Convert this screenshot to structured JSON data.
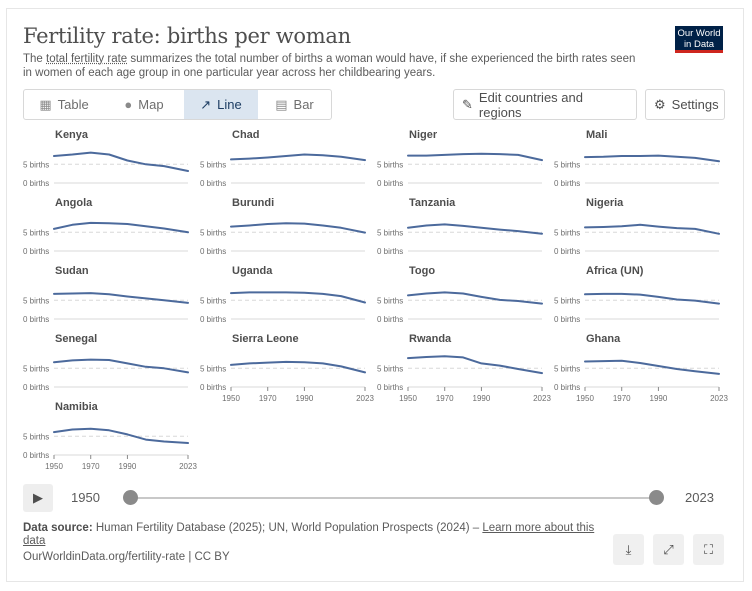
{
  "header": {
    "title": "Fertility rate: births per woman",
    "subtitle_pre": "The ",
    "subtitle_link": "total fertility rate",
    "subtitle_post": " summarizes the total number of births a woman would have, if she experienced the birth rates seen in women of each age group in one particular year across her childbearing years.",
    "logo_line1": "Our World",
    "logo_line2": "in Data"
  },
  "tabs": [
    {
      "label": "Table",
      "icon": "table-icon"
    },
    {
      "label": "Map",
      "icon": "globe-icon"
    },
    {
      "label": "Line",
      "icon": "line-chart-icon",
      "active": true
    },
    {
      "label": "Bar",
      "icon": "bar-chart-icon"
    }
  ],
  "controls": {
    "edit_label": "Edit countries and regions",
    "settings_label": "Settings"
  },
  "timeline": {
    "start": "1950",
    "end": "2023",
    "play_icon": "play-icon"
  },
  "footer": {
    "source_label": "Data source:",
    "source_text": " Human Fertility Database (2025); UN, World Population Prospects (2024) – ",
    "source_link": "Learn more about this data",
    "url": "OurWorldinData.org/fertility-rate | CC BY"
  },
  "colors": {
    "series": "#4c6a9c",
    "accent": "#dbe5f0",
    "logo_bg": "#002147",
    "logo_line": "#ce261e"
  },
  "chart_data": {
    "type": "line",
    "layout": "small-multiples",
    "x_range": [
      1950,
      2023
    ],
    "y_range": [
      0,
      8
    ],
    "y_ticks": [
      {
        "value": 0,
        "label": "0 births"
      },
      {
        "value": 5,
        "label": "5 births"
      }
    ],
    "x_ticks": [
      {
        "value": 1950,
        "label": "1950"
      },
      {
        "value": 1970,
        "label": "1970"
      },
      {
        "value": 1990,
        "label": "1990"
      },
      {
        "value": 2023,
        "label": "2023"
      }
    ],
    "x_years": [
      1950,
      1960,
      1970,
      1980,
      1990,
      2000,
      2010,
      2023
    ],
    "panels": [
      {
        "name": "Kenya",
        "values": [
          7.2,
          7.6,
          8.1,
          7.6,
          6.0,
          5.0,
          4.5,
          3.2
        ]
      },
      {
        "name": "Chad",
        "values": [
          6.3,
          6.5,
          6.8,
          7.2,
          7.6,
          7.4,
          7.0,
          6.1
        ]
      },
      {
        "name": "Niger",
        "values": [
          7.3,
          7.3,
          7.5,
          7.7,
          7.8,
          7.7,
          7.5,
          6.1
        ]
      },
      {
        "name": "Mali",
        "values": [
          6.9,
          7.0,
          7.2,
          7.2,
          7.3,
          7.0,
          6.7,
          5.8
        ]
      },
      {
        "name": "Angola",
        "values": [
          5.9,
          7.0,
          7.5,
          7.4,
          7.2,
          6.6,
          6.0,
          5.0
        ]
      },
      {
        "name": "Burundi",
        "values": [
          6.5,
          6.8,
          7.2,
          7.4,
          7.3,
          6.8,
          6.2,
          4.9
        ]
      },
      {
        "name": "Tanzania",
        "values": [
          6.2,
          6.8,
          7.1,
          6.7,
          6.2,
          5.7,
          5.3,
          4.6
        ]
      },
      {
        "name": "Nigeria",
        "values": [
          6.3,
          6.4,
          6.6,
          7.0,
          6.5,
          6.1,
          5.9,
          4.6
        ]
      },
      {
        "name": "Sudan",
        "values": [
          6.7,
          6.8,
          6.9,
          6.6,
          6.0,
          5.5,
          5.0,
          4.3
        ]
      },
      {
        "name": "Uganda",
        "values": [
          6.9,
          7.1,
          7.1,
          7.1,
          7.0,
          6.7,
          6.1,
          4.4
        ]
      },
      {
        "name": "Togo",
        "values": [
          6.3,
          6.8,
          7.1,
          6.8,
          5.9,
          5.1,
          4.8,
          4.1
        ]
      },
      {
        "name": "Africa (UN)",
        "values": [
          6.6,
          6.7,
          6.7,
          6.5,
          5.9,
          5.2,
          4.9,
          4.1
        ]
      },
      {
        "name": "Senegal",
        "values": [
          6.6,
          7.1,
          7.3,
          7.2,
          6.3,
          5.4,
          5.0,
          3.9
        ]
      },
      {
        "name": "Sierra Leone",
        "values": [
          5.9,
          6.3,
          6.5,
          6.7,
          6.6,
          6.3,
          5.5,
          3.9
        ]
      },
      {
        "name": "Rwanda",
        "values": [
          7.7,
          8.0,
          8.2,
          7.9,
          6.3,
          5.7,
          4.8,
          3.7
        ]
      },
      {
        "name": "Ghana",
        "values": [
          6.8,
          6.9,
          7.0,
          6.4,
          5.6,
          4.8,
          4.2,
          3.5
        ]
      },
      {
        "name": "Namibia",
        "values": [
          6.1,
          6.8,
          7.0,
          6.6,
          5.5,
          4.1,
          3.6,
          3.2
        ]
      }
    ]
  }
}
